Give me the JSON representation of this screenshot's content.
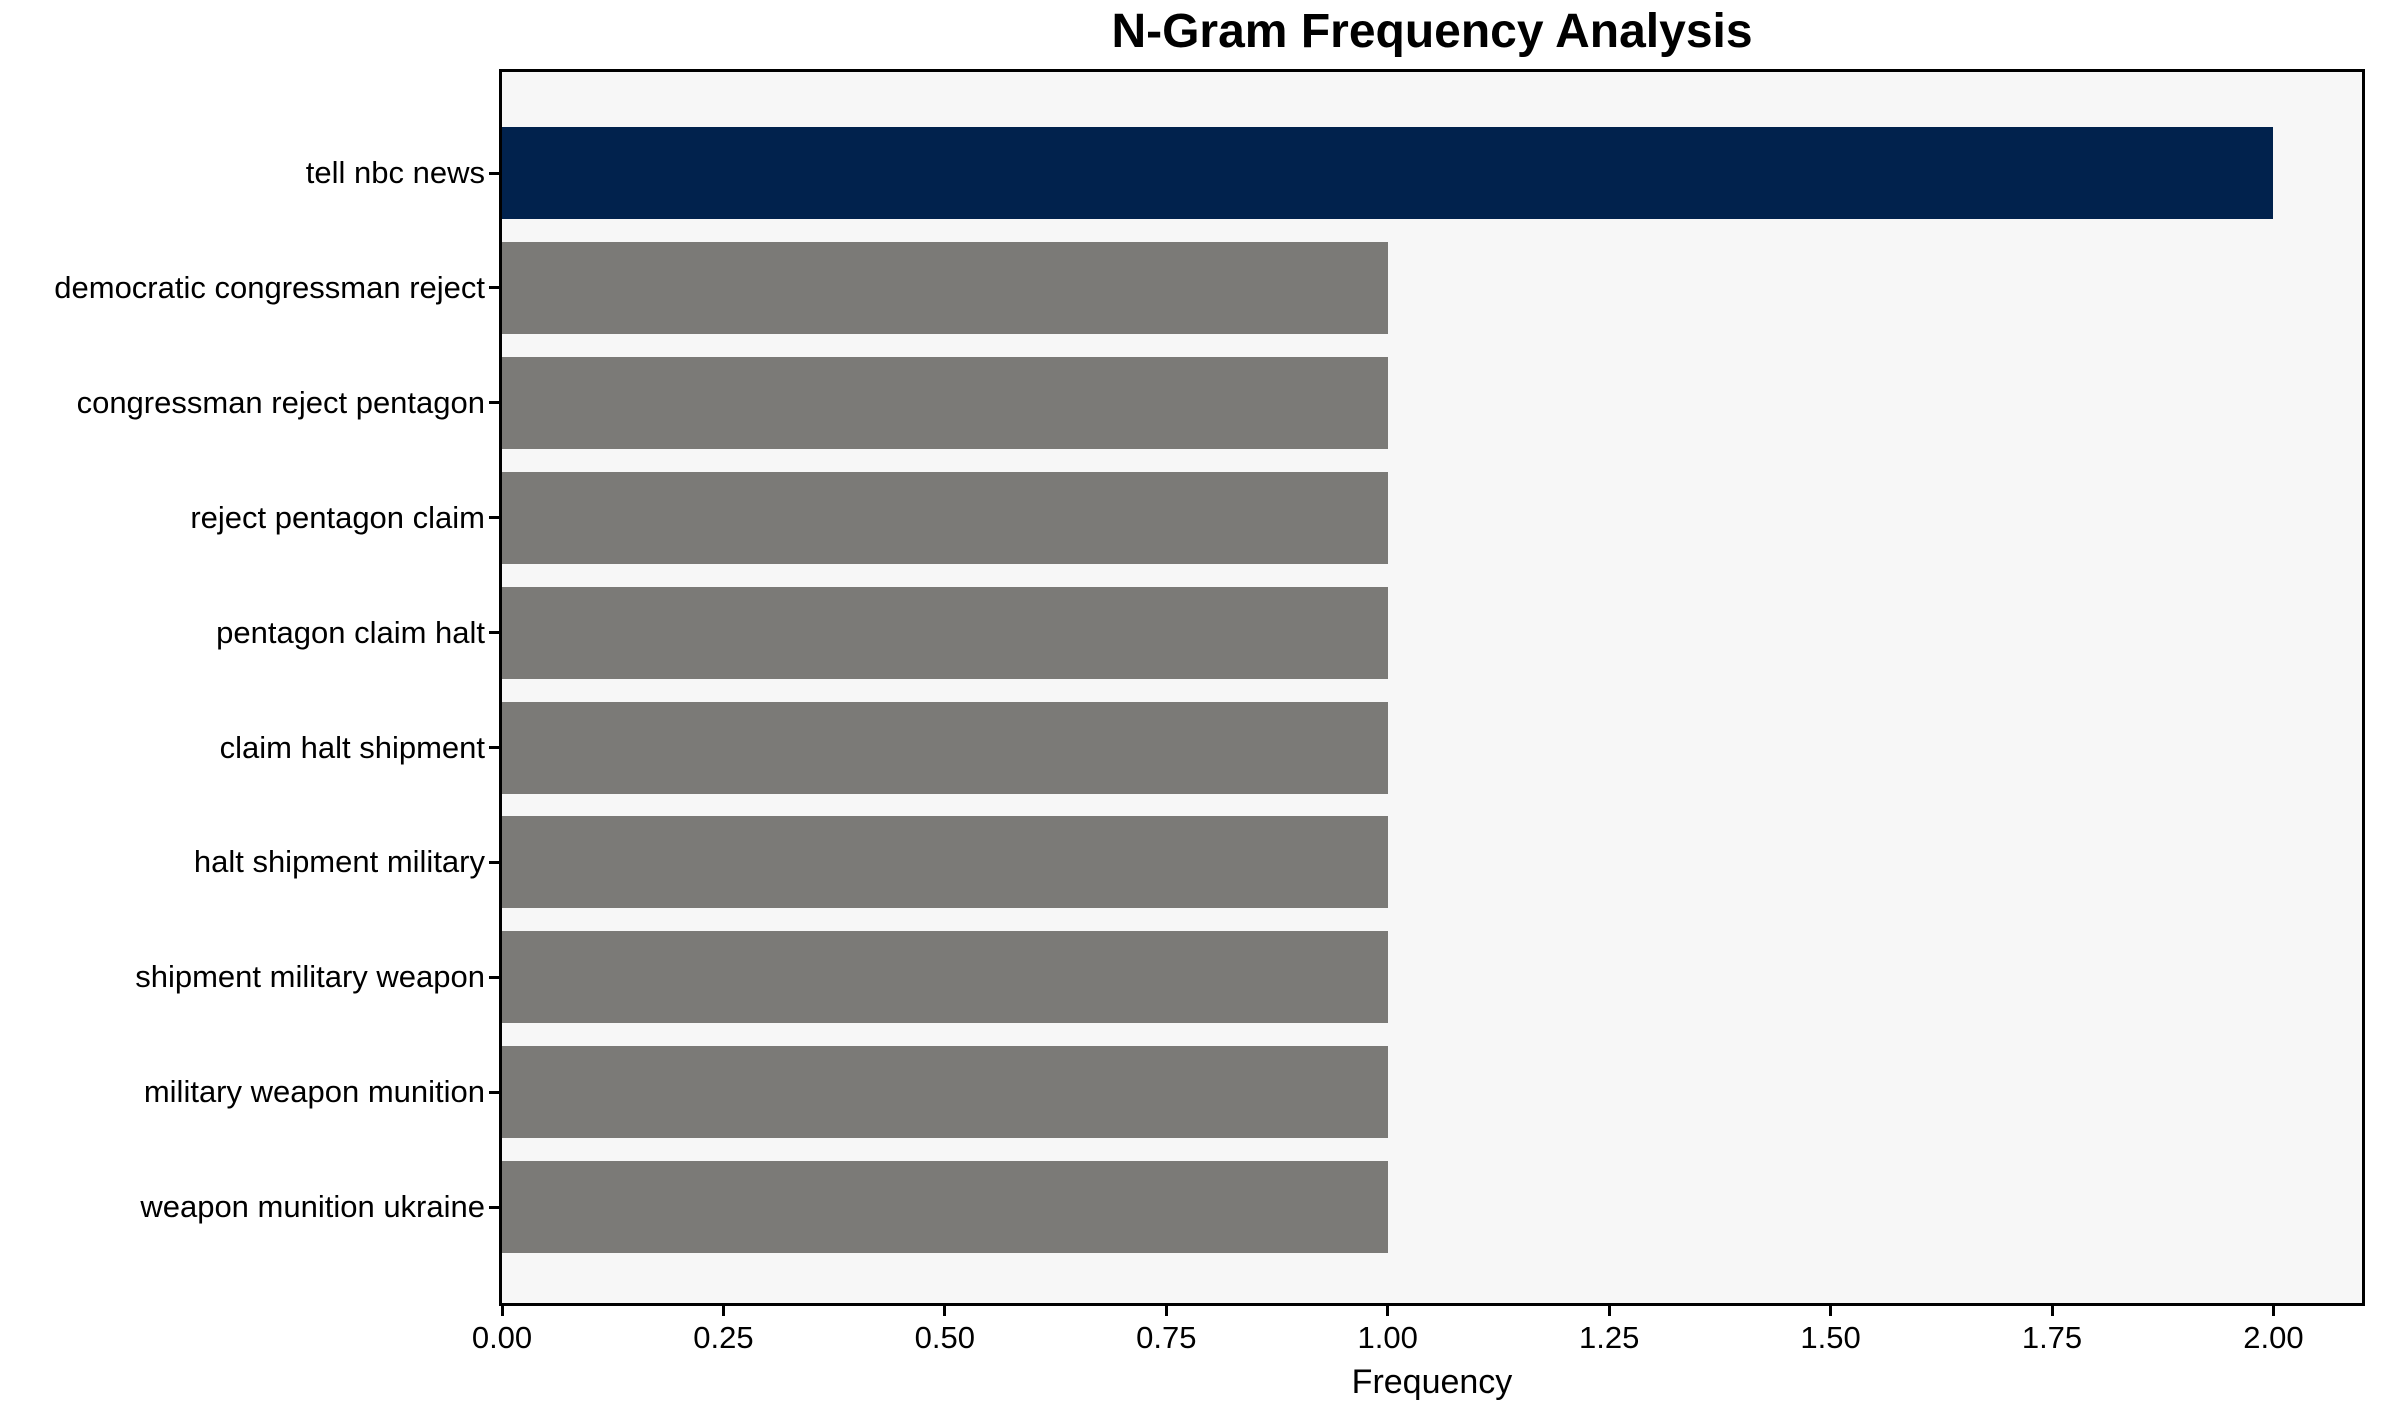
{
  "chart_data": {
    "type": "bar",
    "orientation": "horizontal",
    "title": "N-Gram Frequency Analysis",
    "xlabel": "Frequency",
    "ylabel": "",
    "categories": [
      "tell nbc news",
      "democratic congressman reject",
      "congressman reject pentagon",
      "reject pentagon claim",
      "pentagon claim halt",
      "claim halt shipment",
      "halt shipment military",
      "shipment military weapon",
      "military weapon munition",
      "weapon munition ukraine"
    ],
    "values": [
      2,
      1,
      1,
      1,
      1,
      1,
      1,
      1,
      1,
      1
    ],
    "bar_colors": [
      "#01224d",
      "#7b7a77",
      "#7b7a77",
      "#7b7a77",
      "#7b7a77",
      "#7b7a77",
      "#7b7a77",
      "#7b7a77",
      "#7b7a77",
      "#7b7a77"
    ],
    "highlight_color": "#01224d",
    "default_bar_color": "#7b7a77",
    "plot_background": "#f7f7f7",
    "spine_color": "#000000",
    "xlim": [
      0,
      2.1
    ],
    "xticks": {
      "values": [
        0,
        0.25,
        0.5,
        0.75,
        1.0,
        1.25,
        1.5,
        1.75,
        2.0
      ],
      "labels": [
        "0.00",
        "0.25",
        "0.50",
        "0.75",
        "1.00",
        "1.25",
        "1.50",
        "1.75",
        "2.00"
      ]
    },
    "grid": false,
    "legend": null
  }
}
